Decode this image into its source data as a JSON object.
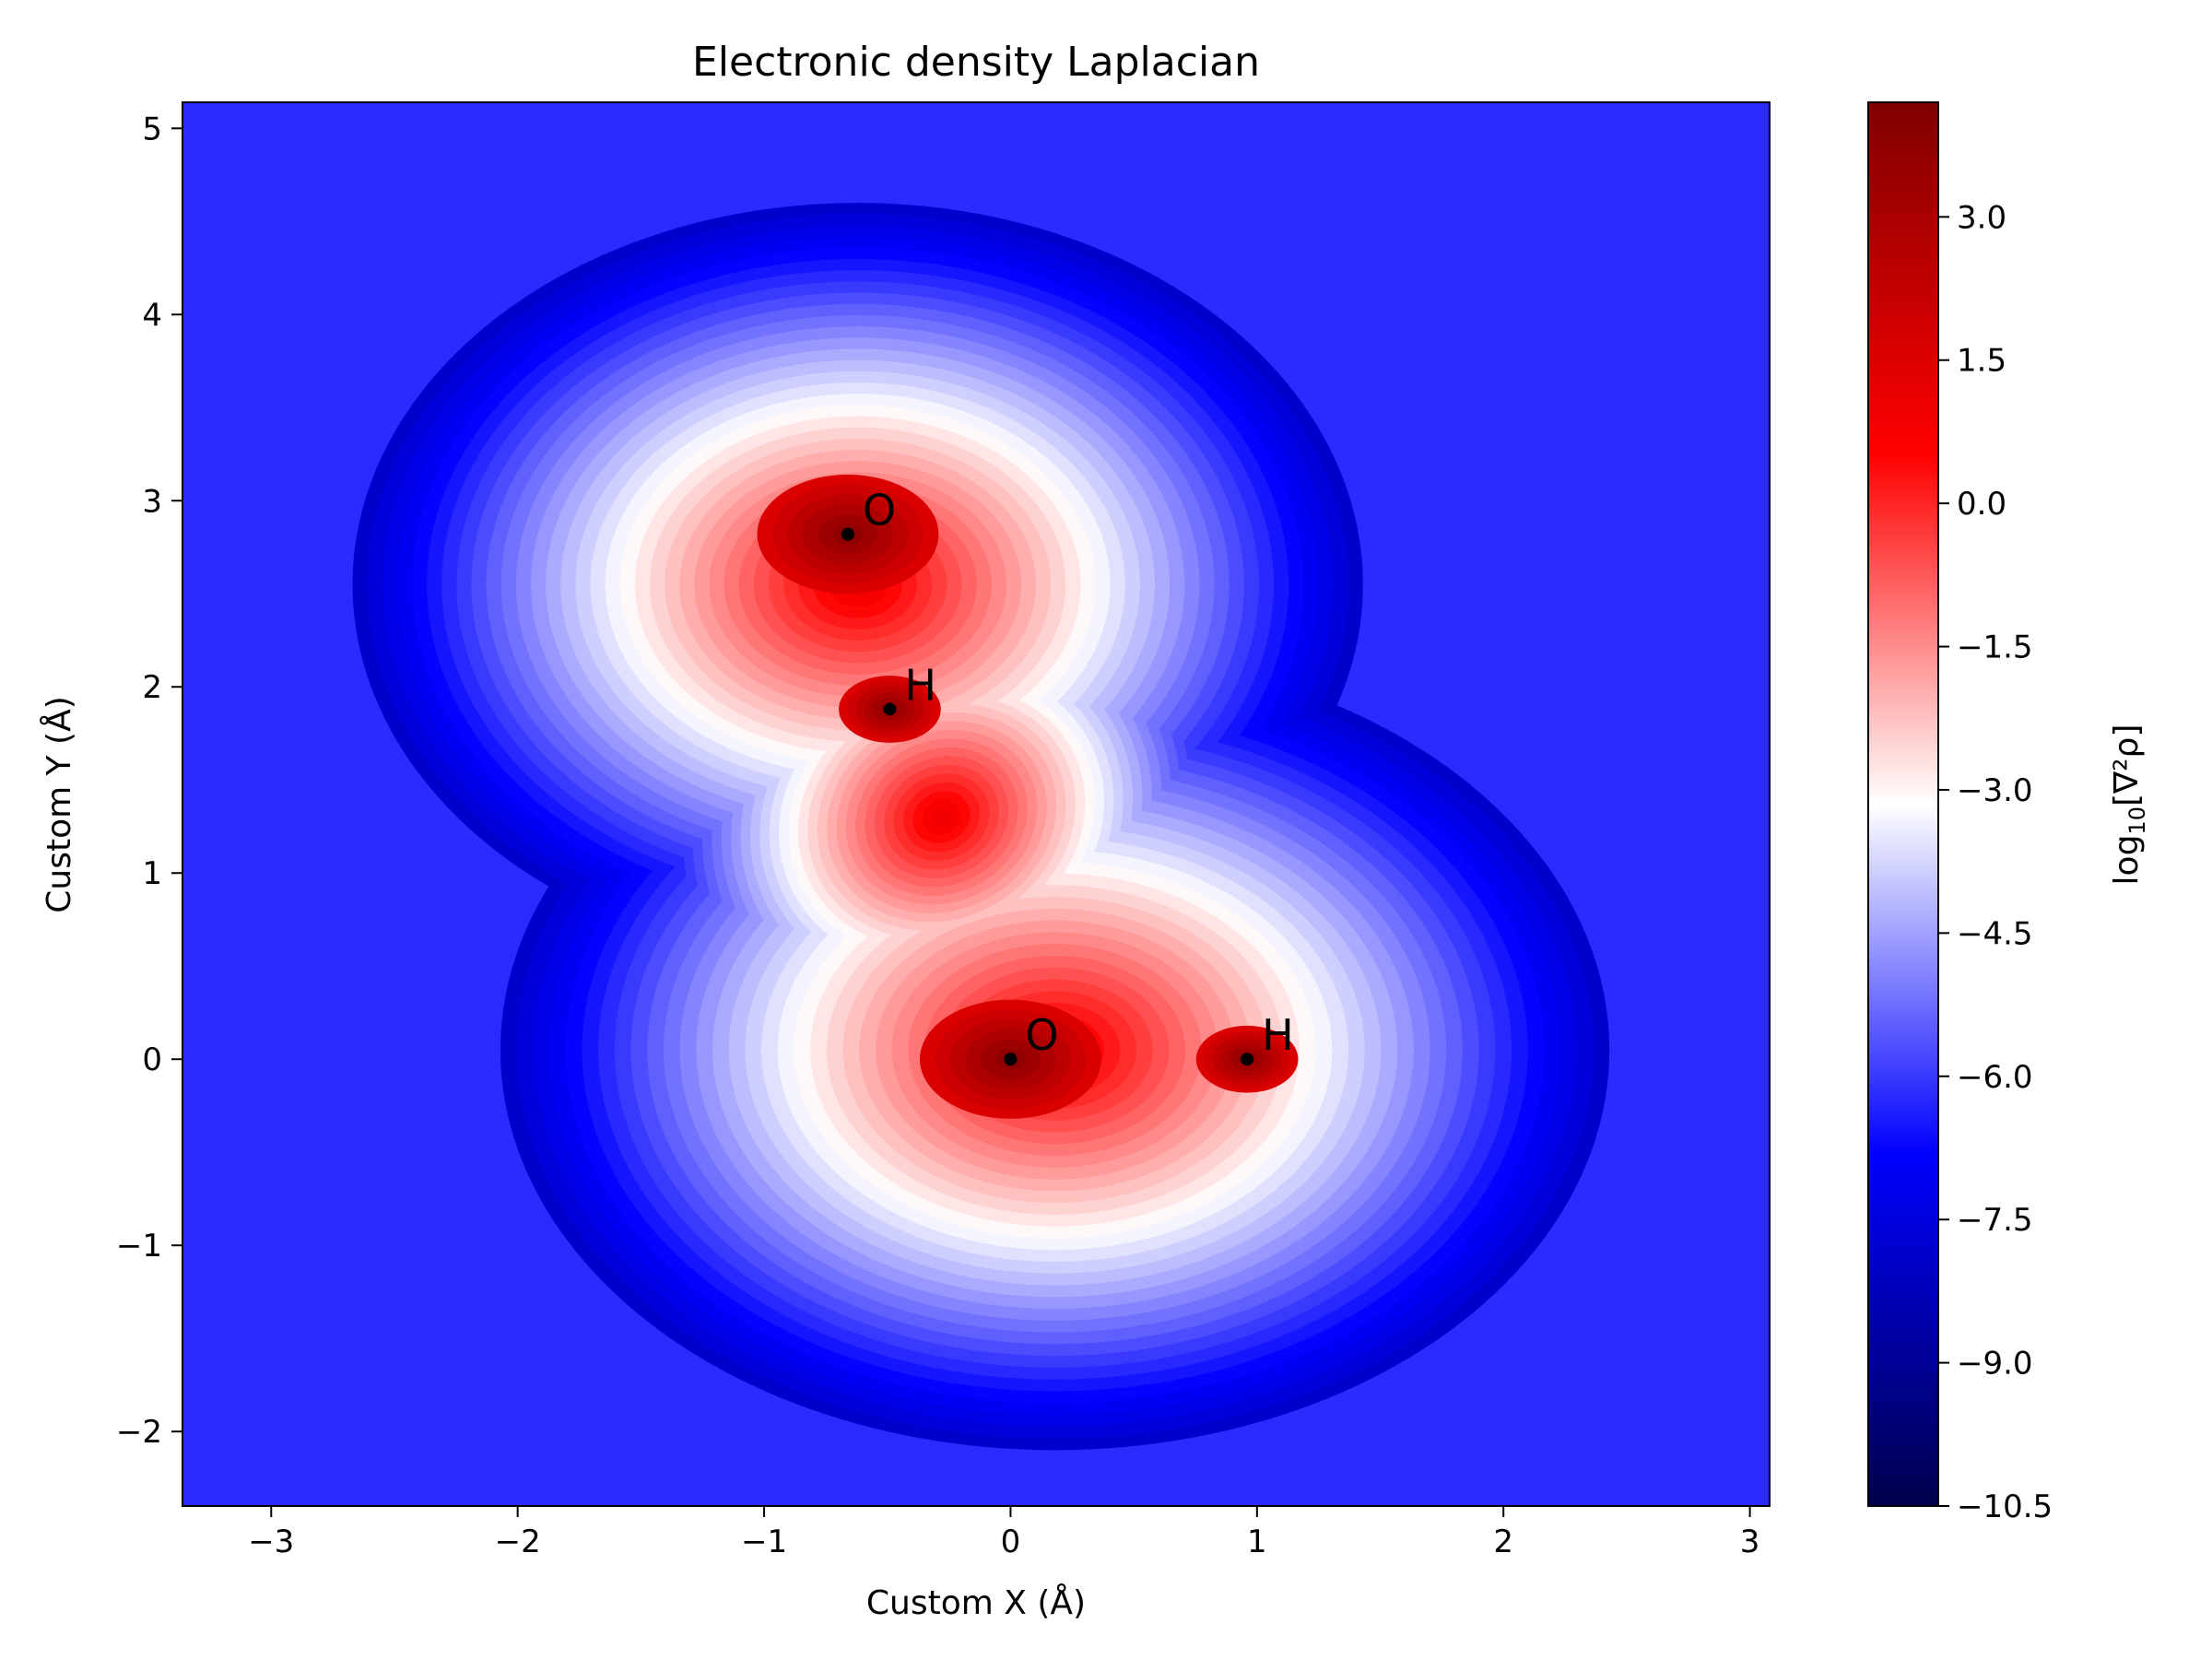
{
  "chart_data": {
    "type": "heatmap",
    "title": "Electronic density Laplacian",
    "xlabel": "Custom X (Å)",
    "ylabel": "Custom Y (Å)",
    "xlim": [
      -3.36,
      3.08
    ],
    "ylim": [
      -2.4,
      5.14
    ],
    "x_ticks": [
      -3,
      -2,
      -1,
      0,
      1,
      2,
      3
    ],
    "x_tick_labels": [
      "−3",
      "−2",
      "−1",
      "0",
      "1",
      "2",
      "3"
    ],
    "y_ticks": [
      -2,
      -1,
      0,
      1,
      2,
      3,
      4,
      5
    ],
    "y_tick_labels": [
      "−2",
      "−1",
      "0",
      "1",
      "2",
      "3",
      "4",
      "5"
    ],
    "colorbar": {
      "label_base": "log",
      "label_subscript": "10",
      "label_expr": "[∇²ρ]",
      "range": [
        -10.5,
        4.2
      ],
      "ticks": [
        3.0,
        1.5,
        0.0,
        -1.5,
        -3.0,
        -4.5,
        -6.0,
        -7.5,
        -9.0,
        -10.5
      ],
      "tick_labels": [
        "3.0",
        "1.5",
        "0.0",
        "−1.5",
        "−3.0",
        "−4.5",
        "−6.0",
        "−7.5",
        "−9.0",
        "−10.5"
      ],
      "colormap": "seismic",
      "colors": [
        "#00004c",
        "#0000ff",
        "#ffffff",
        "#ff0000",
        "#7f0000"
      ]
    },
    "atoms": [
      {
        "label": "O",
        "x": -0.66,
        "y": 2.82
      },
      {
        "label": "H",
        "x": -0.49,
        "y": 1.88
      },
      {
        "label": "O",
        "x": 0.0,
        "y": 0.0
      },
      {
        "label": "H",
        "x": 0.96,
        "y": 0.0
      }
    ]
  }
}
